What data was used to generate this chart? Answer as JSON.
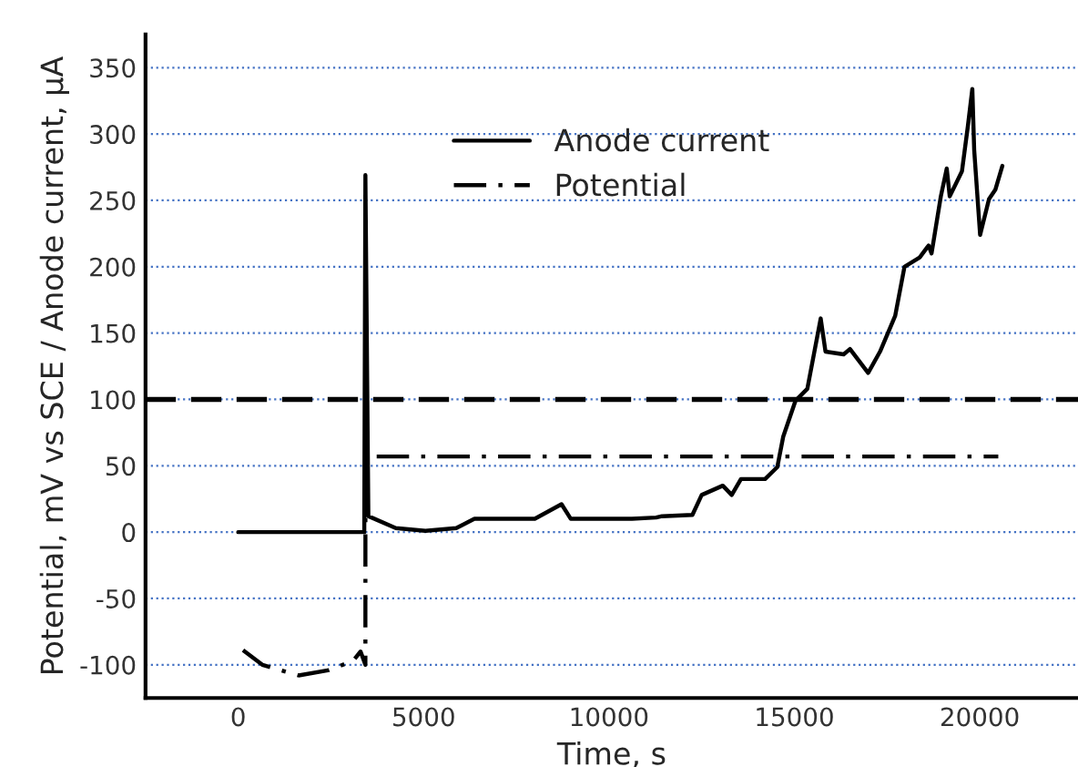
{
  "chart_data": {
    "type": "line",
    "xlabel": "Time, s",
    "ylabel": "Potential, mV vs SCE / Anode current, μA",
    "xlim": [
      -2500,
      22650
    ],
    "xticks": [
      0,
      5000,
      10000,
      15000,
      20000
    ],
    "ylim": [
      -125,
      375
    ],
    "yticks": [
      -100,
      -50,
      0,
      50,
      100,
      150,
      200,
      250,
      300,
      350
    ],
    "grid": "y",
    "legend": "top",
    "ref_lines": [
      {
        "axis": "y",
        "value": 100,
        "color": "#000000",
        "line_style": "dashed"
      }
    ],
    "series": [
      {
        "name": "Anode current",
        "color": "#000000",
        "line_style": "solid",
        "x": [
          0,
          3400,
          3430,
          3510,
          4250,
          5050,
          5880,
          6370,
          7190,
          8000,
          8720,
          8970,
          9640,
          10620,
          11270,
          11430,
          12250,
          12500,
          13070,
          13310,
          13560,
          14210,
          14540,
          14700,
          15030,
          15350,
          15710,
          15840,
          16330,
          16500,
          16990,
          17310,
          17720,
          17970,
          18380,
          18620,
          18700,
          18950,
          19110,
          19190,
          19520,
          19680,
          19800,
          19850,
          20010,
          20250,
          20420,
          20610
        ],
        "values": [
          0,
          0,
          269,
          12,
          3,
          1,
          3,
          10,
          10,
          10,
          21,
          10,
          10,
          10,
          11,
          12,
          13,
          28,
          35,
          28,
          40,
          40,
          49,
          72,
          99,
          108,
          161,
          136,
          134,
          138,
          120,
          136,
          163,
          200,
          207,
          216,
          210,
          253,
          274,
          253,
          272,
          306,
          334,
          288,
          224,
          251,
          258,
          276
        ]
      },
      {
        "name": "Potential",
        "color": "#000000",
        "line_style": "dashdot",
        "x": [
          130,
          650,
          1630,
          2450,
          3100,
          3300,
          3430,
          3431,
          20500
        ],
        "values": [
          -89,
          -100,
          -108,
          -104,
          -97,
          -90,
          -100,
          57,
          57
        ]
      }
    ]
  }
}
